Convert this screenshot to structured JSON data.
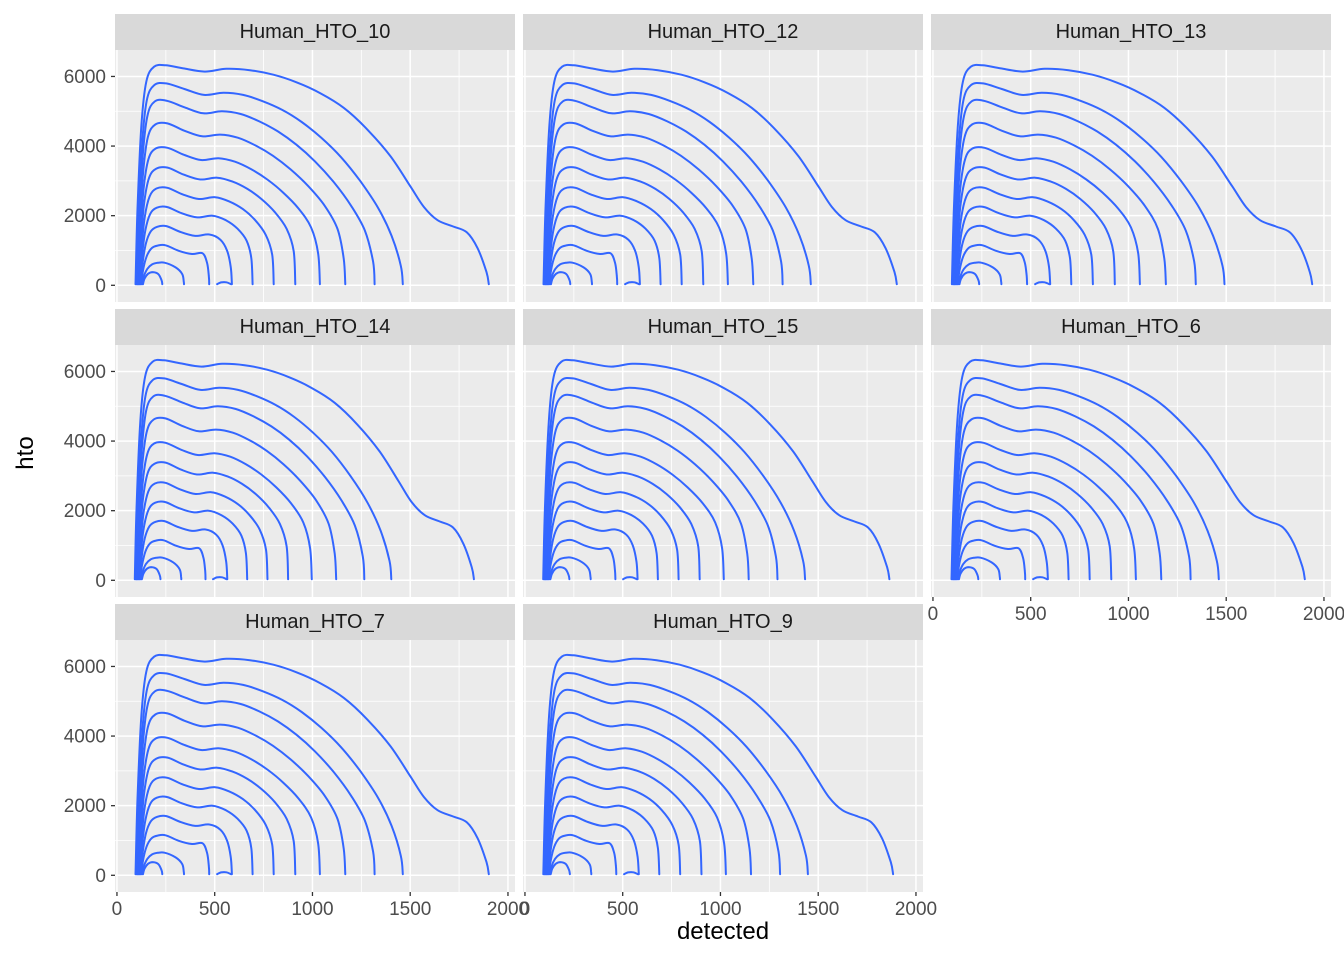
{
  "chart_data": {
    "type": "contour",
    "title": "",
    "xlabel": "detected",
    "ylabel": "hto",
    "x_ticks": [
      0,
      500,
      1000,
      1500,
      2000
    ],
    "y_ticks": [
      0,
      2000,
      4000,
      6000
    ],
    "x_minor_gridlines": [
      250,
      750,
      1250,
      1750
    ],
    "y_minor_gridlines": [
      1000,
      3000,
      5000
    ],
    "x_domain": [
      -10,
      2036
    ],
    "y_domain": [
      -480,
      6760
    ],
    "line_color": "#3366FF",
    "panel_background": "#EBEBEB",
    "strip_background": "#D9D9D9",
    "gridline_color": "#FFFFFF",
    "tick_color": "#333333",
    "tick_label_color": "#4D4D4D",
    "legend": "none",
    "grid": "on",
    "facets": [
      {
        "title": "Human_HTO_10",
        "x_scale": 1.0,
        "y_axis": true,
        "x_axis": false
      },
      {
        "title": "Human_HTO_12",
        "x_scale": 1.0,
        "y_axis": false,
        "x_axis": false
      },
      {
        "title": "Human_HTO_13",
        "x_scale": 1.02,
        "y_axis": false,
        "x_axis": false
      },
      {
        "title": "Human_HTO_14",
        "x_scale": 0.96,
        "y_axis": true,
        "x_axis": false
      },
      {
        "title": "Human_HTO_15",
        "x_scale": 0.98,
        "y_axis": false,
        "x_axis": false
      },
      {
        "title": "Human_HTO_6",
        "x_scale": 1.0,
        "y_axis": false,
        "x_axis": true
      },
      {
        "title": "Human_HTO_7",
        "x_scale": 1.0,
        "y_axis": true,
        "x_axis": true
      },
      {
        "title": "Human_HTO_9",
        "x_scale": 0.99,
        "y_axis": false,
        "x_axis": true
      }
    ],
    "contours": [
      [
        [
          95,
          30
        ],
        [
          105,
          2200
        ],
        [
          125,
          4600
        ],
        [
          150,
          5850
        ],
        [
          190,
          6280
        ],
        [
          250,
          6320
        ],
        [
          340,
          6230
        ],
        [
          450,
          6140
        ],
        [
          560,
          6220
        ],
        [
          680,
          6180
        ],
        [
          800,
          6050
        ],
        [
          920,
          5830
        ],
        [
          1040,
          5520
        ],
        [
          1160,
          5100
        ],
        [
          1280,
          4480
        ],
        [
          1400,
          3700
        ],
        [
          1500,
          2850
        ],
        [
          1570,
          2250
        ],
        [
          1640,
          1870
        ],
        [
          1720,
          1690
        ],
        [
          1790,
          1520
        ],
        [
          1845,
          1060
        ],
        [
          1890,
          380
        ],
        [
          1902,
          30
        ]
      ],
      [
        [
          100,
          30
        ],
        [
          110,
          1900
        ],
        [
          128,
          4000
        ],
        [
          152,
          5300
        ],
        [
          190,
          5750
        ],
        [
          252,
          5800
        ],
        [
          345,
          5640
        ],
        [
          445,
          5470
        ],
        [
          545,
          5530
        ],
        [
          645,
          5470
        ],
        [
          745,
          5290
        ],
        [
          845,
          5040
        ],
        [
          945,
          4690
        ],
        [
          1045,
          4240
        ],
        [
          1145,
          3690
        ],
        [
          1245,
          2990
        ],
        [
          1335,
          2230
        ],
        [
          1405,
          1420
        ],
        [
          1452,
          560
        ],
        [
          1462,
          30
        ]
      ],
      [
        [
          103,
          30
        ],
        [
          112,
          1700
        ],
        [
          130,
          3600
        ],
        [
          155,
          4850
        ],
        [
          193,
          5280
        ],
        [
          256,
          5300
        ],
        [
          347,
          5110
        ],
        [
          442,
          4940
        ],
        [
          538,
          5000
        ],
        [
          633,
          4920
        ],
        [
          728,
          4710
        ],
        [
          823,
          4420
        ],
        [
          918,
          4040
        ],
        [
          1013,
          3560
        ],
        [
          1108,
          2970
        ],
        [
          1198,
          2280
        ],
        [
          1268,
          1570
        ],
        [
          1310,
          680
        ],
        [
          1318,
          30
        ]
      ],
      [
        [
          106,
          30
        ],
        [
          115,
          1500
        ],
        [
          133,
          3200
        ],
        [
          158,
          4250
        ],
        [
          196,
          4620
        ],
        [
          258,
          4650
        ],
        [
          346,
          4440
        ],
        [
          436,
          4280
        ],
        [
          528,
          4330
        ],
        [
          618,
          4240
        ],
        [
          708,
          4020
        ],
        [
          798,
          3720
        ],
        [
          888,
          3330
        ],
        [
          978,
          2850
        ],
        [
          1063,
          2280
        ],
        [
          1128,
          1620
        ],
        [
          1160,
          770
        ],
        [
          1168,
          30
        ]
      ],
      [
        [
          109,
          30
        ],
        [
          118,
          1300
        ],
        [
          136,
          2750
        ],
        [
          161,
          3620
        ],
        [
          198,
          3930
        ],
        [
          259,
          3950
        ],
        [
          343,
          3750
        ],
        [
          430,
          3600
        ],
        [
          519,
          3650
        ],
        [
          604,
          3550
        ],
        [
          688,
          3330
        ],
        [
          769,
          3040
        ],
        [
          849,
          2670
        ],
        [
          928,
          2210
        ],
        [
          993,
          1660
        ],
        [
          1029,
          920
        ],
        [
          1038,
          30
        ]
      ],
      [
        [
          112,
          30
        ],
        [
          121,
          1150
        ],
        [
          139,
          2350
        ],
        [
          164,
          3080
        ],
        [
          200,
          3350
        ],
        [
          259,
          3380
        ],
        [
          341,
          3180
        ],
        [
          426,
          3040
        ],
        [
          512,
          3090
        ],
        [
          591,
          2980
        ],
        [
          667,
          2770
        ],
        [
          739,
          2480
        ],
        [
          808,
          2100
        ],
        [
          868,
          1620
        ],
        [
          904,
          980
        ],
        [
          912,
          30
        ]
      ],
      [
        [
          115,
          30
        ],
        [
          124,
          950
        ],
        [
          142,
          1950
        ],
        [
          167,
          2550
        ],
        [
          202,
          2780
        ],
        [
          258,
          2800
        ],
        [
          337,
          2610
        ],
        [
          419,
          2480
        ],
        [
          502,
          2530
        ],
        [
          574,
          2410
        ],
        [
          644,
          2190
        ],
        [
          707,
          1870
        ],
        [
          761,
          1450
        ],
        [
          794,
          880
        ],
        [
          802,
          30
        ]
      ],
      [
        [
          118,
          30
        ],
        [
          127,
          780
        ],
        [
          145,
          1570
        ],
        [
          170,
          2050
        ],
        [
          204,
          2230
        ],
        [
          256,
          2250
        ],
        [
          331,
          2070
        ],
        [
          411,
          1950
        ],
        [
          489,
          2000
        ],
        [
          557,
          1870
        ],
        [
          616,
          1630
        ],
        [
          663,
          1280
        ],
        [
          687,
          780
        ],
        [
          694,
          30
        ]
      ],
      [
        [
          121,
          30
        ],
        [
          130,
          600
        ],
        [
          148,
          1200
        ],
        [
          173,
          1550
        ],
        [
          206,
          1680
        ],
        [
          253,
          1700
        ],
        [
          325,
          1530
        ],
        [
          400,
          1420
        ],
        [
          473,
          1460
        ],
        [
          529,
          1310
        ],
        [
          563,
          1000
        ],
        [
          582,
          530
        ],
        [
          588,
          30
        ]
      ],
      [
        [
          124,
          30
        ],
        [
          133,
          420
        ],
        [
          151,
          820
        ],
        [
          176,
          1060
        ],
        [
          208,
          1140
        ],
        [
          249,
          1150
        ],
        [
          316,
          990
        ],
        [
          384,
          900
        ],
        [
          438,
          920
        ],
        [
          461,
          640
        ],
        [
          470,
          270
        ],
        [
          472,
          30
        ]
      ],
      [
        [
          128,
          30
        ],
        [
          137,
          250
        ],
        [
          155,
          470
        ],
        [
          180,
          600
        ],
        [
          209,
          645
        ],
        [
          243,
          650
        ],
        [
          300,
          515
        ],
        [
          334,
          320
        ],
        [
          342,
          95
        ],
        [
          343,
          30
        ]
      ],
      [
        [
          133,
          30
        ],
        [
          141,
          190
        ],
        [
          159,
          330
        ],
        [
          183,
          378
        ],
        [
          211,
          325
        ],
        [
          228,
          150
        ],
        [
          232,
          30
        ]
      ],
      [
        [
          512,
          30
        ],
        [
          532,
          82
        ],
        [
          560,
          86
        ],
        [
          584,
          30
        ]
      ]
    ]
  }
}
